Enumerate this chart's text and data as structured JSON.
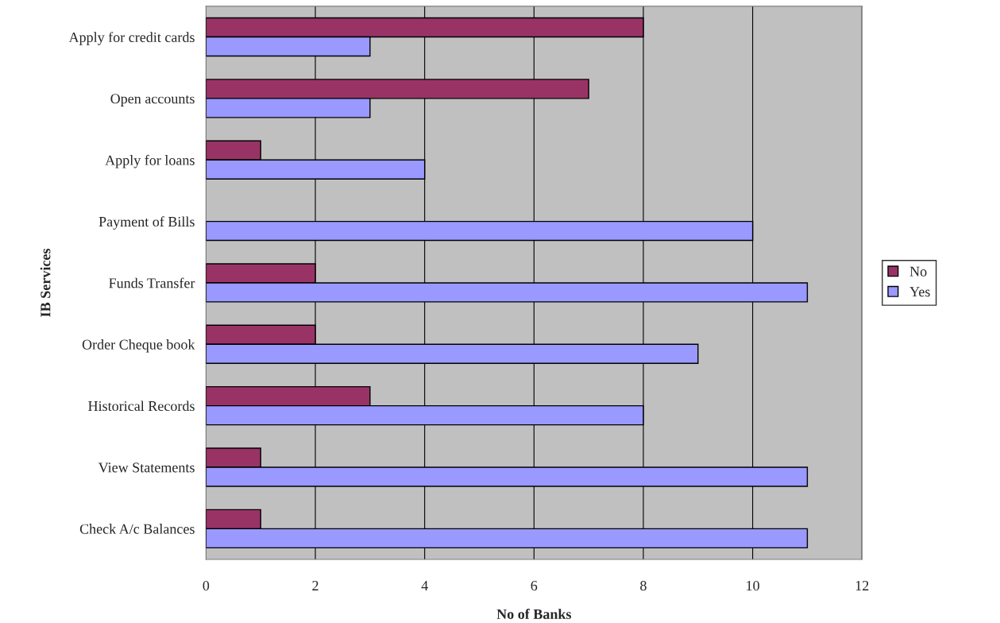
{
  "chart_data": {
    "type": "bar",
    "orientation": "horizontal",
    "xlabel": "No of Banks",
    "ylabel": "IB Services",
    "categories": [
      "Apply for credit cards",
      "Open accounts",
      "Apply for loans",
      "Payment of Bills",
      "Funds Transfer",
      "Order Cheque book",
      "Historical Records",
      "View Statements",
      "Check A/c Balances"
    ],
    "series": [
      {
        "name": "No",
        "color": "#993366",
        "values": [
          8,
          7,
          1,
          null,
          2,
          2,
          3,
          1,
          1
        ]
      },
      {
        "name": "Yes",
        "color": "#9999ff",
        "values": [
          3,
          3,
          4,
          10,
          11,
          9,
          8,
          11,
          11
        ]
      }
    ],
    "xlim": [
      0,
      12
    ],
    "xticks": [
      0,
      2,
      4,
      6,
      8,
      10,
      12
    ],
    "grid": "x",
    "legend": "right"
  }
}
